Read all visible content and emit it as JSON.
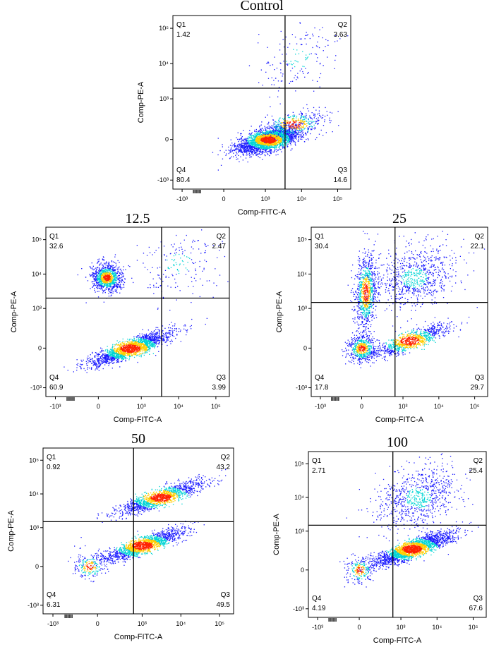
{
  "chart_data": [
    {
      "type": "scatter",
      "title": "Control",
      "xlabel": "Comp-FITC-A",
      "ylabel": "Comp-PE-A",
      "x_ticks": [
        "-10³",
        "0",
        "10³",
        "10⁴",
        "10⁵"
      ],
      "y_ticks": [
        "10⁵",
        "10⁴",
        "10³",
        "0",
        "-10³"
      ],
      "quadrants": [
        {
          "name": "Q1",
          "value": "1.42"
        },
        {
          "name": "Q2",
          "value": "3.63"
        },
        {
          "name": "Q3",
          "value": "14.6"
        },
        {
          "name": "Q4",
          "value": "80.4"
        }
      ],
      "gate": {
        "x": 3500,
        "y": 2000
      },
      "clusters": [
        {
          "x_center": 1200,
          "y_center": 0,
          "weight": 0.82,
          "spread": "wide"
        },
        {
          "x_center": 8000,
          "y_center": 15000,
          "weight": 0.05,
          "spread": "diffuse"
        },
        {
          "x_center": 6000,
          "y_center": 200,
          "weight": 0.13,
          "spread": "wide"
        }
      ]
    },
    {
      "type": "scatter",
      "title": "12.5",
      "xlabel": "Comp-FITC-A",
      "ylabel": "Comp-PE-A",
      "x_ticks": [
        "-10³",
        "0",
        "10³",
        "10⁴",
        "10⁵"
      ],
      "y_ticks": [
        "10⁵",
        "10⁴",
        "10³",
        "0",
        "-10³"
      ],
      "quadrants": [
        {
          "name": "Q1",
          "value": "32.6"
        },
        {
          "name": "Q2",
          "value": "2.47"
        },
        {
          "name": "Q3",
          "value": "3.99"
        },
        {
          "name": "Q4",
          "value": "60.9"
        }
      ],
      "gate": {
        "x": 3500,
        "y": 2000
      },
      "clusters": [
        {
          "x_center": 500,
          "y_center": 0,
          "weight": 0.61,
          "spread": "diagonal-band"
        },
        {
          "x_center": 100,
          "y_center": 8000,
          "weight": 0.33,
          "spread": "compact"
        },
        {
          "x_center": 10000,
          "y_center": 20000,
          "weight": 0.06,
          "spread": "diffuse"
        }
      ]
    },
    {
      "type": "scatter",
      "title": "25",
      "xlabel": "Comp-FITC-A",
      "ylabel": "Comp-PE-A",
      "x_ticks": [
        "-10³",
        "0",
        "10³",
        "10⁴",
        "10⁵"
      ],
      "y_ticks": [
        "10⁵",
        "10⁴",
        "10³",
        "0",
        "-10³"
      ],
      "quadrants": [
        {
          "name": "Q1",
          "value": "30.4"
        },
        {
          "name": "Q2",
          "value": "22.1"
        },
        {
          "name": "Q3",
          "value": "29.7"
        },
        {
          "name": "Q4",
          "value": "17.8"
        }
      ],
      "gate": {
        "x": 600,
        "y": 1500
      },
      "clusters": [
        {
          "x_center": 50,
          "y_center": 3000,
          "weight": 0.28,
          "spread": "vertical-band"
        },
        {
          "x_center": 2000,
          "y_center": 8000,
          "weight": 0.25,
          "spread": "diffuse"
        },
        {
          "x_center": 1500,
          "y_center": 100,
          "weight": 0.3,
          "spread": "diagonal-band"
        },
        {
          "x_center": 0,
          "y_center": 0,
          "weight": 0.17,
          "spread": "compact"
        }
      ]
    },
    {
      "type": "scatter",
      "title": "50",
      "xlabel": "Comp-FITC-A",
      "ylabel": "Comp-PE-A",
      "x_ticks": [
        "-10³",
        "0",
        "10³",
        "10⁴",
        "10⁵"
      ],
      "y_ticks": [
        "10⁵",
        "10⁴",
        "10³",
        "0",
        "-10³"
      ],
      "quadrants": [
        {
          "name": "Q1",
          "value": "0.92"
        },
        {
          "name": "Q2",
          "value": "43.2"
        },
        {
          "name": "Q3",
          "value": "49.5"
        },
        {
          "name": "Q4",
          "value": "6.31"
        }
      ],
      "gate": {
        "x": 600,
        "y": 1500
      },
      "clusters": [
        {
          "x_center": 1000,
          "y_center": 300,
          "weight": 0.5,
          "spread": "diagonal-band"
        },
        {
          "x_center": 3000,
          "y_center": 8000,
          "weight": 0.44,
          "spread": "diagonal-band"
        },
        {
          "x_center": -100,
          "y_center": 0,
          "weight": 0.06,
          "spread": "compact"
        }
      ]
    },
    {
      "type": "scatter",
      "title": "100",
      "xlabel": "Comp-FITC-A",
      "ylabel": "Comp-PE-A",
      "x_ticks": [
        "-10³",
        "0",
        "10³",
        "10⁴",
        "10⁵"
      ],
      "y_ticks": [
        "10⁵",
        "10⁴",
        "10³",
        "0",
        "-10³"
      ],
      "quadrants": [
        {
          "name": "Q1",
          "value": "2.71"
        },
        {
          "name": "Q2",
          "value": "25.4"
        },
        {
          "name": "Q3",
          "value": "67.6"
        },
        {
          "name": "Q4",
          "value": "4.19"
        }
      ],
      "gate": {
        "x": 600,
        "y": 1500
      },
      "clusters": [
        {
          "x_center": 2000,
          "y_center": 300,
          "weight": 0.68,
          "spread": "diagonal-band"
        },
        {
          "x_center": 3000,
          "y_center": 10000,
          "weight": 0.25,
          "spread": "diffuse"
        },
        {
          "x_center": 0,
          "y_center": 0,
          "weight": 0.07,
          "spread": "compact"
        }
      ]
    }
  ],
  "colors": {
    "axis": "#000000",
    "gate": "#000000",
    "density_low": "#1a1aff",
    "density_mid": "#00d4d4",
    "density_high": "#ffcc00",
    "density_peak": "#ff2200"
  }
}
